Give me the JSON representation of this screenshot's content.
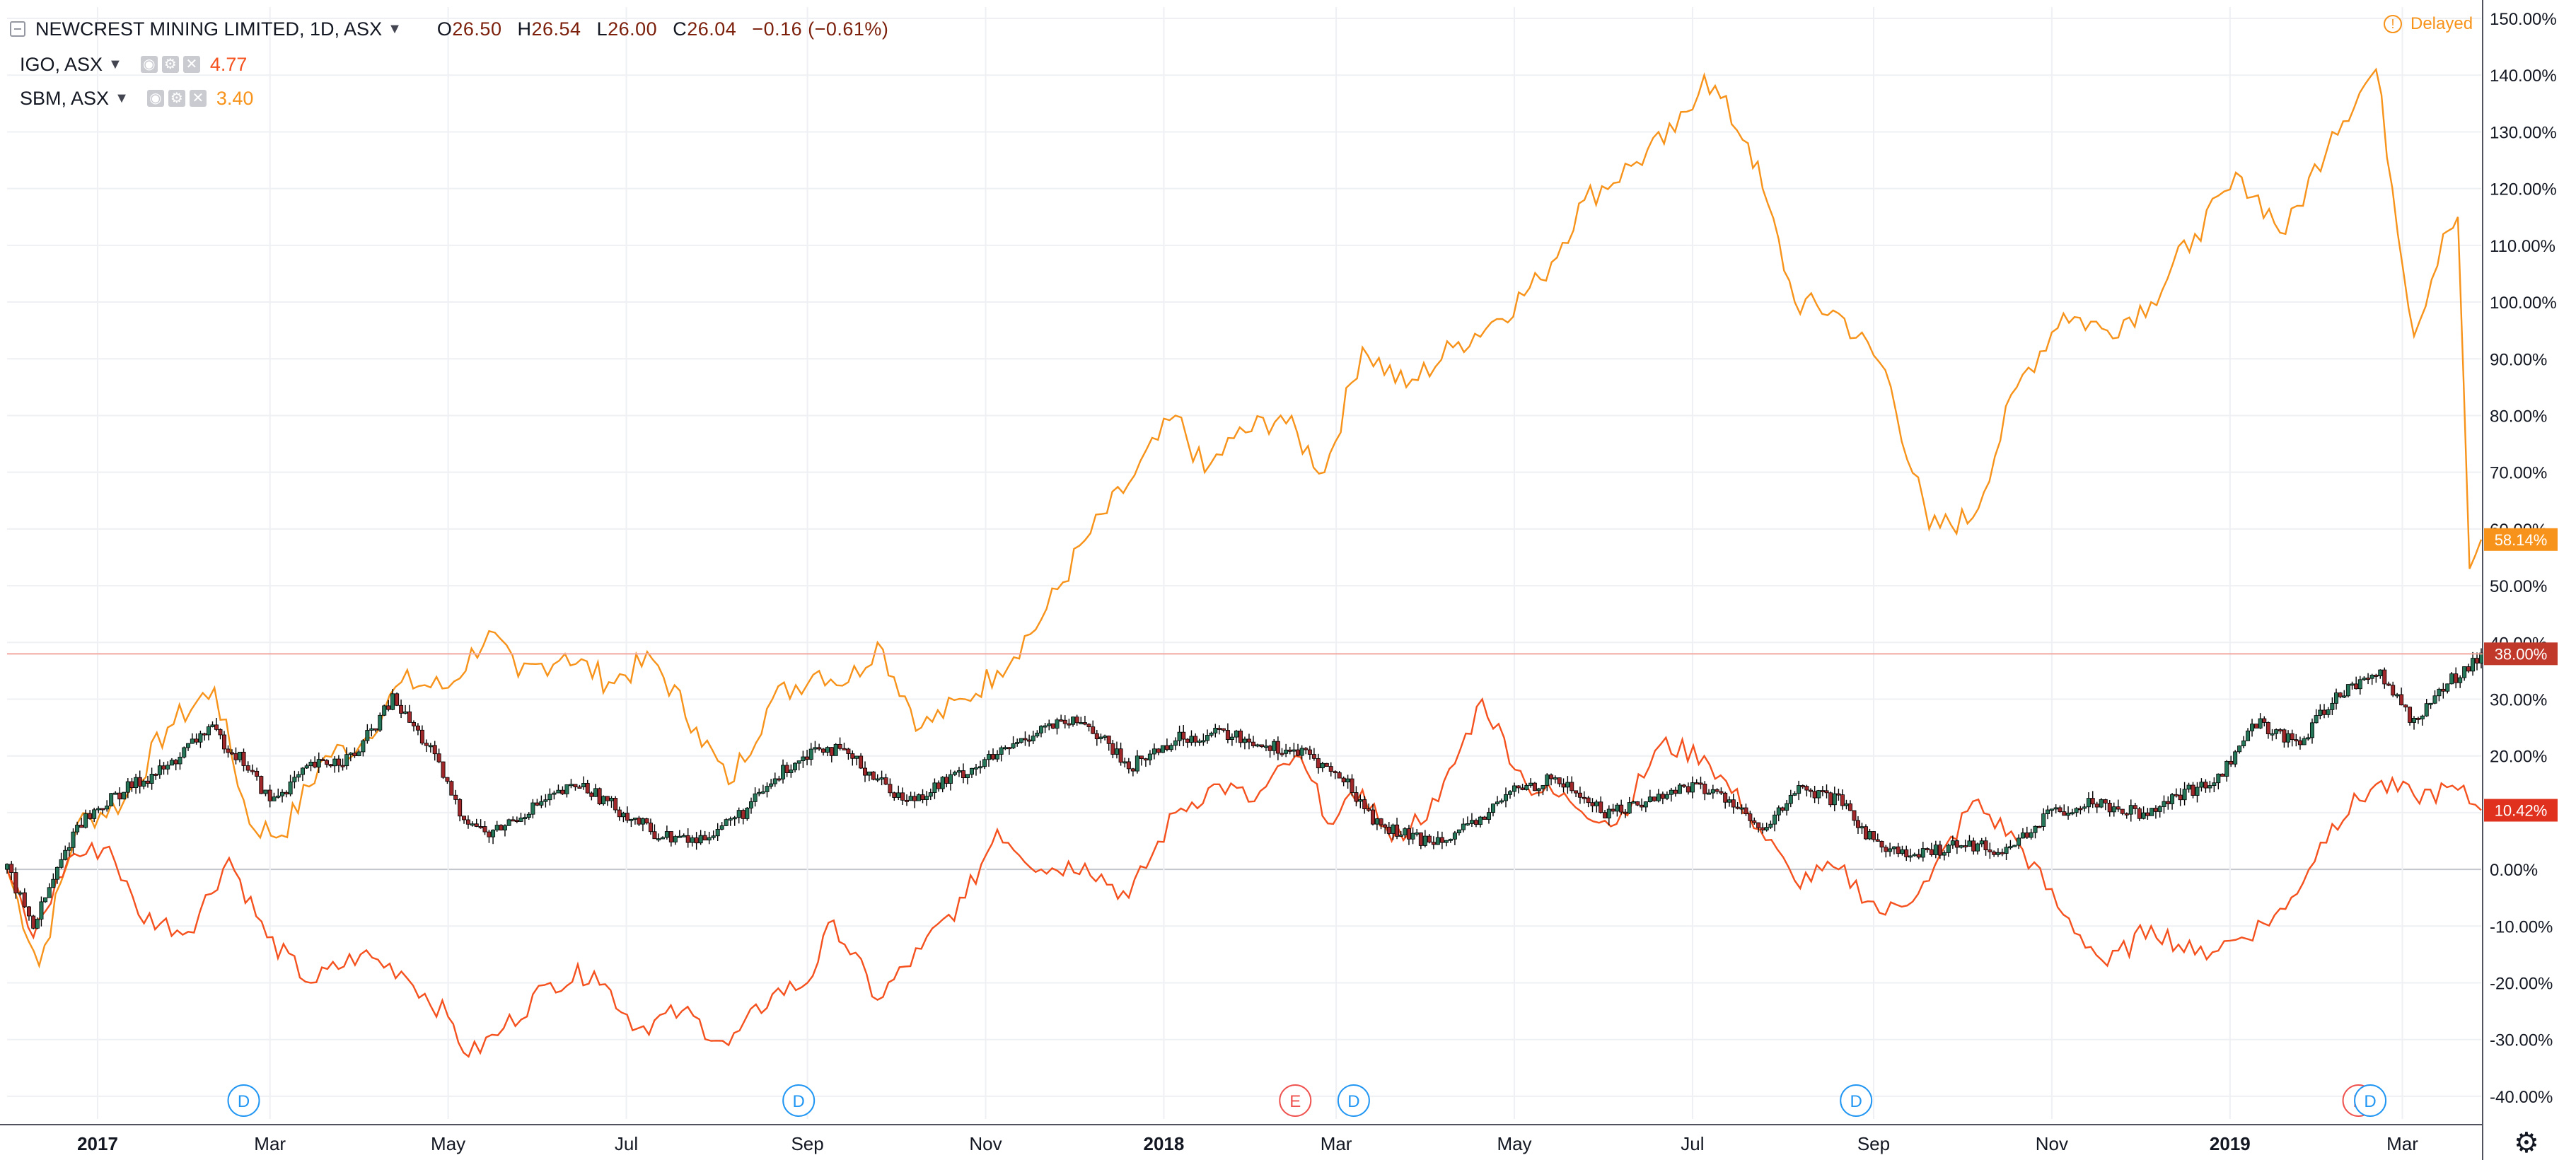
{
  "header": {
    "symbol_title": "NEWCREST MINING LIMITED, 1D, ASX",
    "ohlc": {
      "o_label": "O",
      "o_value": "26.50",
      "h_label": "H",
      "h_value": "26.54",
      "l_label": "L",
      "l_value": "26.00",
      "c_label": "C",
      "c_value": "26.04",
      "change": "−0.16 (−0.61%)"
    },
    "delayed_label": "Delayed",
    "icons": [
      "collapse-icon",
      "chevron-down-icon",
      "eye-icon",
      "settings-icon",
      "close-icon",
      "gear-icon",
      "info-icon"
    ]
  },
  "overlays": [
    {
      "label": "IGO, ASX",
      "value": "4.77",
      "color": "#f4511e"
    },
    {
      "label": "SBM, ASX",
      "value": "3.40",
      "color": "#f7931a"
    }
  ],
  "colors": {
    "up_candle": "#26775a",
    "down_candle": "#a1282a",
    "axis_badge_orange": "#f7931a",
    "axis_badge_red": "#e0301e",
    "axis_badge_main": "#c1392b",
    "grid": "#eef0f3",
    "event_dividend": "#2196f3",
    "event_earnings": "#ef5350"
  },
  "chart_data": {
    "type": "line",
    "scale": "percent",
    "ylim": [
      -44,
      152
    ],
    "y_ticks": [
      "150.00%",
      "140.00%",
      "130.00%",
      "120.00%",
      "110.00%",
      "100.00%",
      "90.00%",
      "80.00%",
      "70.00%",
      "60.00%",
      "50.00%",
      "40.00%",
      "30.00%",
      "20.00%",
      "10.00%",
      "0.00%",
      "-10.00%",
      "-20.00%",
      "-30.00%",
      "-40.00%"
    ],
    "x_range": [
      "2016-12-01",
      "2019-03-28"
    ],
    "x_ticks": [
      {
        "label": "2017",
        "date": "2017-01-01",
        "bold": true
      },
      {
        "label": "Mar",
        "date": "2017-03-01"
      },
      {
        "label": "May",
        "date": "2017-05-01"
      },
      {
        "label": "Jul",
        "date": "2017-07-01"
      },
      {
        "label": "Sep",
        "date": "2017-09-01"
      },
      {
        "label": "Nov",
        "date": "2017-11-01"
      },
      {
        "label": "2018",
        "date": "2018-01-01",
        "bold": true
      },
      {
        "label": "Mar",
        "date": "2018-03-01"
      },
      {
        "label": "May",
        "date": "2018-05-01"
      },
      {
        "label": "Jul",
        "date": "2018-07-01"
      },
      {
        "label": "Sep",
        "date": "2018-09-01"
      },
      {
        "label": "Nov",
        "date": "2018-11-01"
      },
      {
        "label": "2019",
        "date": "2019-01-01",
        "bold": true
      },
      {
        "label": "Mar",
        "date": "2019-03-01"
      }
    ],
    "price_line": {
      "value": 38.0,
      "label": "38.00%"
    },
    "last_value_badges": [
      {
        "series": "SBM, ASX",
        "label": "58.14%",
        "value": 58.14
      },
      {
        "series": "NEWCREST MINING LIMITED",
        "label": "38.00%",
        "value": 38.0
      },
      {
        "series": "IGO, ASX",
        "label": "10.42%",
        "value": 10.42
      }
    ],
    "events": [
      {
        "type": "D",
        "date": "2017-02-20"
      },
      {
        "type": "D",
        "date": "2017-08-29"
      },
      {
        "type": "E",
        "date": "2018-02-15"
      },
      {
        "type": "D",
        "date": "2018-03-07"
      },
      {
        "type": "D",
        "date": "2018-08-26"
      },
      {
        "type": "E",
        "date": "2019-02-14"
      },
      {
        "type": "D",
        "date": "2019-02-18"
      }
    ],
    "series": [
      {
        "name": "NEWCREST MINING LIMITED, 1D, ASX",
        "style": "candles",
        "points": [
          [
            "2016-12-01",
            0
          ],
          [
            "2016-12-10",
            -10
          ],
          [
            "2016-12-25",
            8
          ],
          [
            "2017-01-10",
            14
          ],
          [
            "2017-01-25",
            18
          ],
          [
            "2017-02-08",
            25
          ],
          [
            "2017-02-20",
            19
          ],
          [
            "2017-03-01",
            12
          ],
          [
            "2017-03-15",
            18
          ],
          [
            "2017-03-30",
            20
          ],
          [
            "2017-04-12",
            30
          ],
          [
            "2017-04-25",
            21
          ],
          [
            "2017-05-05",
            10
          ],
          [
            "2017-05-15",
            6
          ],
          [
            "2017-05-30",
            11
          ],
          [
            "2017-06-15",
            15
          ],
          [
            "2017-06-30",
            10
          ],
          [
            "2017-07-12",
            6
          ],
          [
            "2017-07-25",
            5
          ],
          [
            "2017-08-10",
            10
          ],
          [
            "2017-08-25",
            18
          ],
          [
            "2017-09-05",
            22
          ],
          [
            "2017-09-15",
            20
          ],
          [
            "2017-09-25",
            16
          ],
          [
            "2017-10-05",
            12
          ],
          [
            "2017-10-20",
            16
          ],
          [
            "2017-11-05",
            20
          ],
          [
            "2017-11-20",
            25
          ],
          [
            "2017-12-05",
            26
          ],
          [
            "2017-12-20",
            18
          ],
          [
            "2018-01-05",
            23
          ],
          [
            "2018-01-20",
            24
          ],
          [
            "2018-02-05",
            22
          ],
          [
            "2018-02-20",
            20
          ],
          [
            "2018-03-05",
            15
          ],
          [
            "2018-03-15",
            8
          ],
          [
            "2018-03-30",
            5
          ],
          [
            "2018-04-15",
            7
          ],
          [
            "2018-05-01",
            14
          ],
          [
            "2018-05-15",
            16
          ],
          [
            "2018-06-01",
            10
          ],
          [
            "2018-06-15",
            12
          ],
          [
            "2018-07-01",
            15
          ],
          [
            "2018-07-15",
            12
          ],
          [
            "2018-07-25",
            6
          ],
          [
            "2018-08-05",
            14
          ],
          [
            "2018-08-20",
            12
          ],
          [
            "2018-09-01",
            5
          ],
          [
            "2018-09-15",
            2
          ],
          [
            "2018-10-01",
            5
          ],
          [
            "2018-10-15",
            3
          ],
          [
            "2018-11-01",
            10
          ],
          [
            "2018-11-15",
            12
          ],
          [
            "2018-12-01",
            10
          ],
          [
            "2018-12-15",
            13
          ],
          [
            "2018-12-28",
            16
          ],
          [
            "2019-01-10",
            26
          ],
          [
            "2019-01-25",
            22
          ],
          [
            "2019-02-05",
            30
          ],
          [
            "2019-02-20",
            35
          ],
          [
            "2019-03-05",
            26
          ],
          [
            "2019-03-15",
            32
          ],
          [
            "2019-03-28",
            38
          ]
        ]
      },
      {
        "name": "IGO, ASX",
        "style": "line",
        "points": [
          [
            "2016-12-01",
            0
          ],
          [
            "2016-12-10",
            -12
          ],
          [
            "2016-12-22",
            2
          ],
          [
            "2017-01-05",
            4
          ],
          [
            "2017-01-15",
            -8
          ],
          [
            "2017-02-01",
            -11
          ],
          [
            "2017-02-15",
            2
          ],
          [
            "2017-02-28",
            -12
          ],
          [
            "2017-03-15",
            -20
          ],
          [
            "2017-04-01",
            -15
          ],
          [
            "2017-04-15",
            -18
          ],
          [
            "2017-05-01",
            -26
          ],
          [
            "2017-05-08",
            -33
          ],
          [
            "2017-05-20",
            -28
          ],
          [
            "2017-06-05",
            -20
          ],
          [
            "2017-06-20",
            -18
          ],
          [
            "2017-07-05",
            -28
          ],
          [
            "2017-07-20",
            -25
          ],
          [
            "2017-08-05",
            -31
          ],
          [
            "2017-08-20",
            -22
          ],
          [
            "2017-09-01",
            -20
          ],
          [
            "2017-09-10",
            -9
          ],
          [
            "2017-09-25",
            -23
          ],
          [
            "2017-10-10",
            -14
          ],
          [
            "2017-10-25",
            -5
          ],
          [
            "2017-11-05",
            7
          ],
          [
            "2017-11-20",
            0
          ],
          [
            "2017-12-05",
            1
          ],
          [
            "2017-12-20",
            -5
          ],
          [
            "2018-01-05",
            10
          ],
          [
            "2018-01-20",
            15
          ],
          [
            "2018-02-01",
            12
          ],
          [
            "2018-02-15",
            20
          ],
          [
            "2018-02-28",
            8
          ],
          [
            "2018-03-10",
            14
          ],
          [
            "2018-03-20",
            5
          ],
          [
            "2018-04-05",
            12
          ],
          [
            "2018-04-20",
            30
          ],
          [
            "2018-05-05",
            15
          ],
          [
            "2018-05-20",
            12
          ],
          [
            "2018-06-05",
            8
          ],
          [
            "2018-06-20",
            22
          ],
          [
            "2018-07-05",
            20
          ],
          [
            "2018-07-20",
            10
          ],
          [
            "2018-08-05",
            -2
          ],
          [
            "2018-08-20",
            0
          ],
          [
            "2018-09-05",
            -8
          ],
          [
            "2018-09-20",
            -2
          ],
          [
            "2018-10-05",
            12
          ],
          [
            "2018-10-20",
            5
          ],
          [
            "2018-11-05",
            -8
          ],
          [
            "2018-11-20",
            -17
          ],
          [
            "2018-12-05",
            -10
          ],
          [
            "2018-12-20",
            -15
          ],
          [
            "2019-01-05",
            -12
          ],
          [
            "2019-01-20",
            -7
          ],
          [
            "2019-02-05",
            8
          ],
          [
            "2019-02-20",
            15
          ],
          [
            "2019-03-05",
            13
          ],
          [
            "2019-03-20",
            14
          ],
          [
            "2019-03-28",
            10.42
          ]
        ]
      },
      {
        "name": "SBM, ASX",
        "style": "line",
        "points": [
          [
            "2016-12-01",
            0
          ],
          [
            "2016-12-12",
            -17
          ],
          [
            "2016-12-25",
            8
          ],
          [
            "2017-01-10",
            12
          ],
          [
            "2017-01-25",
            25
          ],
          [
            "2017-02-10",
            32
          ],
          [
            "2017-02-22",
            8
          ],
          [
            "2017-03-05",
            6
          ],
          [
            "2017-03-20",
            20
          ],
          [
            "2017-04-01",
            22
          ],
          [
            "2017-04-15",
            33
          ],
          [
            "2017-05-01",
            32
          ],
          [
            "2017-05-15",
            42
          ],
          [
            "2017-05-25",
            34
          ],
          [
            "2017-06-10",
            38
          ],
          [
            "2017-06-25",
            33
          ],
          [
            "2017-07-10",
            37
          ],
          [
            "2017-07-25",
            25
          ],
          [
            "2017-08-05",
            15
          ],
          [
            "2017-08-20",
            30
          ],
          [
            "2017-09-05",
            35
          ],
          [
            "2017-09-15",
            33
          ],
          [
            "2017-09-25",
            40
          ],
          [
            "2017-10-10",
            25
          ],
          [
            "2017-10-25",
            30
          ],
          [
            "2017-11-05",
            35
          ],
          [
            "2017-11-20",
            44
          ],
          [
            "2017-12-05",
            58
          ],
          [
            "2017-12-20",
            68
          ],
          [
            "2018-01-05",
            80
          ],
          [
            "2018-01-15",
            70
          ],
          [
            "2018-01-25",
            76
          ],
          [
            "2018-02-10",
            80
          ],
          [
            "2018-02-25",
            70
          ],
          [
            "2018-03-10",
            92
          ],
          [
            "2018-03-25",
            85
          ],
          [
            "2018-04-10",
            92
          ],
          [
            "2018-04-25",
            97
          ],
          [
            "2018-05-10",
            104
          ],
          [
            "2018-05-25",
            118
          ],
          [
            "2018-06-10",
            124
          ],
          [
            "2018-06-25",
            130
          ],
          [
            "2018-07-05",
            140
          ],
          [
            "2018-07-20",
            128
          ],
          [
            "2018-07-25",
            120
          ],
          [
            "2018-08-05",
            100
          ],
          [
            "2018-08-20",
            98
          ],
          [
            "2018-09-05",
            88
          ],
          [
            "2018-09-20",
            60
          ],
          [
            "2018-10-05",
            62
          ],
          [
            "2018-10-20",
            85
          ],
          [
            "2018-11-05",
            98
          ],
          [
            "2018-11-20",
            95
          ],
          [
            "2018-12-05",
            100
          ],
          [
            "2018-12-20",
            112
          ],
          [
            "2019-01-05",
            122
          ],
          [
            "2019-01-20",
            112
          ],
          [
            "2019-02-05",
            130
          ],
          [
            "2019-02-20",
            141
          ],
          [
            "2019-03-05",
            94
          ],
          [
            "2019-03-15",
            112
          ],
          [
            "2019-03-20",
            115
          ],
          [
            "2019-03-24",
            53
          ],
          [
            "2019-03-28",
            58.14
          ]
        ]
      }
    ]
  }
}
